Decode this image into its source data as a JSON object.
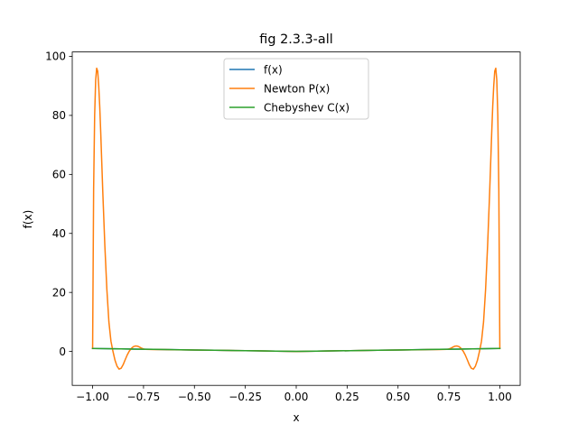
{
  "chart_data": {
    "type": "line",
    "title": "fig 2.3.3-all",
    "xlabel": "x",
    "ylabel": "f(x)",
    "xlim": [
      -1.1,
      1.1
    ],
    "ylim": [
      -11.5,
      101.5
    ],
    "xticks": [
      -1.0,
      -0.75,
      -0.5,
      -0.25,
      0.0,
      0.25,
      0.5,
      0.75,
      1.0
    ],
    "xtick_labels": [
      "−1.00",
      "−0.75",
      "−0.50",
      "−0.25",
      "0.00",
      "0.25",
      "0.50",
      "0.75",
      "1.00"
    ],
    "yticks": [
      0,
      20,
      40,
      60,
      80,
      100
    ],
    "ytick_labels": [
      "0",
      "20",
      "40",
      "60",
      "80",
      "100"
    ],
    "grid": false,
    "legend_position": "top-center",
    "series": [
      {
        "name": "f(x)",
        "color": "#1f77b4",
        "x": [
          -1.0,
          -0.9,
          -0.8,
          -0.7,
          -0.6,
          -0.5,
          -0.4,
          -0.3,
          -0.2,
          -0.1,
          0.0,
          0.1,
          0.2,
          0.3,
          0.4,
          0.5,
          0.6,
          0.7,
          0.8,
          0.9,
          1.0
        ],
        "y": [
          1.0,
          0.9,
          0.8,
          0.7,
          0.6,
          0.5,
          0.4,
          0.3,
          0.2,
          0.1,
          0.0,
          0.1,
          0.2,
          0.3,
          0.4,
          0.5,
          0.6,
          0.7,
          0.8,
          0.9,
          1.0
        ]
      },
      {
        "name": "Newton P(x)",
        "color": "#ff7f0e",
        "x": [
          -1.0,
          -0.995,
          -0.99,
          -0.985,
          -0.98,
          -0.975,
          -0.97,
          -0.965,
          -0.96,
          -0.955,
          -0.95,
          -0.94,
          -0.93,
          -0.92,
          -0.91,
          -0.9,
          -0.89,
          -0.88,
          -0.87,
          -0.86,
          -0.85,
          -0.84,
          -0.83,
          -0.82,
          -0.81,
          -0.8,
          -0.79,
          -0.78,
          -0.77,
          -0.76,
          -0.75,
          -0.74,
          -0.72,
          -0.7,
          -0.65,
          -0.6,
          -0.5,
          -0.4,
          -0.3,
          -0.2,
          -0.1,
          0.0,
          0.1,
          0.2,
          0.3,
          0.4,
          0.5,
          0.6,
          0.65,
          0.7,
          0.72,
          0.74,
          0.75,
          0.76,
          0.77,
          0.78,
          0.79,
          0.8,
          0.81,
          0.82,
          0.83,
          0.84,
          0.85,
          0.86,
          0.87,
          0.88,
          0.89,
          0.9,
          0.91,
          0.92,
          0.93,
          0.94,
          0.95,
          0.955,
          0.96,
          0.965,
          0.97,
          0.975,
          0.98,
          0.985,
          0.99,
          0.995,
          1.0
        ],
        "y": [
          1.0,
          55.0,
          80.0,
          92.0,
          96.0,
          95.0,
          90.0,
          83.0,
          74.0,
          64.0,
          54.0,
          36.0,
          21.0,
          10.0,
          3.5,
          0.0,
          -3.0,
          -5.0,
          -6.0,
          -5.7,
          -4.5,
          -2.8,
          -1.2,
          0.1,
          1.0,
          1.6,
          1.85,
          1.8,
          1.5,
          1.1,
          0.85,
          0.7,
          0.68,
          0.65,
          0.62,
          0.58,
          0.5,
          0.4,
          0.3,
          0.2,
          0.1,
          0.0,
          0.1,
          0.2,
          0.3,
          0.4,
          0.5,
          0.58,
          0.62,
          0.65,
          0.68,
          0.7,
          0.85,
          1.1,
          1.5,
          1.8,
          1.85,
          1.6,
          1.0,
          0.1,
          -1.2,
          -2.8,
          -4.5,
          -5.7,
          -6.0,
          -5.0,
          -3.0,
          0.0,
          3.5,
          10.0,
          21.0,
          36.0,
          54.0,
          64.0,
          74.0,
          83.0,
          90.0,
          95.0,
          96.0,
          92.0,
          80.0,
          55.0,
          1.0
        ]
      },
      {
        "name": "Chebyshev C(x)",
        "color": "#2ca02c",
        "x": [
          -1.0,
          -0.9,
          -0.8,
          -0.7,
          -0.6,
          -0.5,
          -0.4,
          -0.3,
          -0.2,
          -0.1,
          0.0,
          0.1,
          0.2,
          0.3,
          0.4,
          0.5,
          0.6,
          0.7,
          0.8,
          0.9,
          1.0
        ],
        "y": [
          1.0,
          0.9,
          0.8,
          0.7,
          0.6,
          0.5,
          0.4,
          0.3,
          0.2,
          0.1,
          0.02,
          0.1,
          0.2,
          0.3,
          0.4,
          0.5,
          0.6,
          0.7,
          0.8,
          0.9,
          1.0
        ]
      }
    ]
  }
}
